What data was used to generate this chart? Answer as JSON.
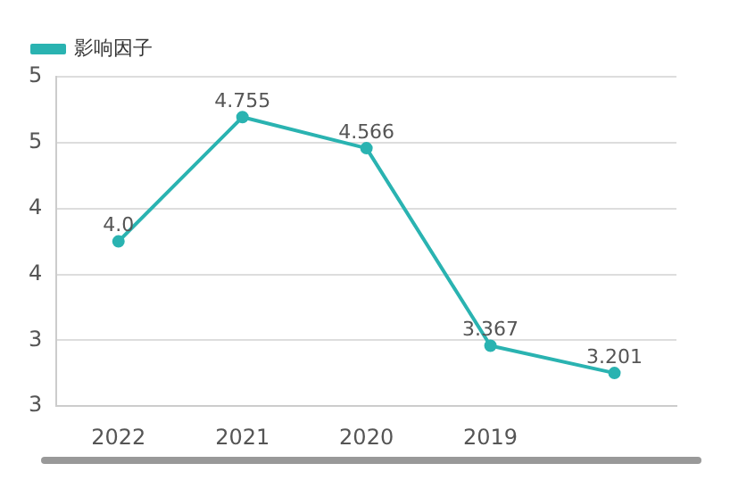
{
  "chart_data": {
    "type": "line",
    "categories": [
      "2022",
      "2021",
      "2020",
      "2019",
      null
    ],
    "series": [
      {
        "name": "影响因子",
        "color": "#2ab3b1",
        "values": [
          4.0,
          4.755,
          4.566,
          3.367,
          3.201
        ],
        "value_labels": [
          "4.0",
          "4.755",
          "4.566",
          "3.367",
          "3.201"
        ]
      }
    ],
    "ylim": [
      3.0,
      5.0
    ],
    "yticks": [
      {
        "value": 3.0,
        "label": "3"
      },
      {
        "value": 3.4,
        "label": "3"
      },
      {
        "value": 3.8,
        "label": "4"
      },
      {
        "value": 4.2,
        "label": "4"
      },
      {
        "value": 4.6,
        "label": "5"
      },
      {
        "value": 5.0,
        "label": "5"
      }
    ],
    "grid": "y",
    "legend": "top left",
    "marker": "circle",
    "line_style": "solid"
  }
}
